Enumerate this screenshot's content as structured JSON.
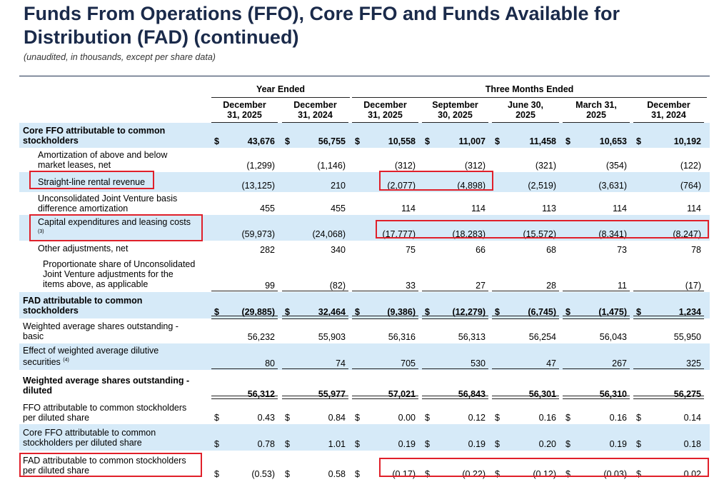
{
  "title": "Funds From Operations (FFO), Core FFO and Funds Available for Distribution (FAD) (continued)",
  "subtitle": "(unaudited, in thousands, except per share data)",
  "groups": {
    "year": "Year Ended",
    "quarter": "Three Months Ended"
  },
  "columns": [
    {
      "header": [
        "December",
        "31, 2025"
      ]
    },
    {
      "header": [
        "December",
        "31, 2024"
      ]
    },
    {
      "header": [
        "December",
        "31, 2025"
      ]
    },
    {
      "header": [
        "September",
        "30, 2025"
      ]
    },
    {
      "header": [
        "June 30,",
        "2025"
      ]
    },
    {
      "header": [
        "March 31,",
        "2025"
      ]
    },
    {
      "header": [
        "December",
        "31, 2024"
      ]
    }
  ],
  "rows": [
    {
      "label": [
        "Core FFO attributable to common",
        "stockholders"
      ],
      "values": [
        "43,676",
        "56,755",
        "10,558",
        "11,007",
        "11,458",
        "10,653",
        "10,192"
      ],
      "dollar": true
    },
    {
      "label": [
        "Amortization of above and below",
        "market leases, net"
      ],
      "values": [
        "(1,299)",
        "(1,146)",
        "(312)",
        "(312)",
        "(321)",
        "(354)",
        "(122)"
      ]
    },
    {
      "label": [
        "Straight-line rental revenue"
      ],
      "values": [
        "(13,125)",
        "210",
        "(2,077)",
        "(4,898)",
        "(2,519)",
        "(3,631)",
        "(764)"
      ]
    },
    {
      "label": [
        "Unconsolidated Joint Venture basis",
        "difference amortization"
      ],
      "values": [
        "455",
        "455",
        "114",
        "114",
        "113",
        "114",
        "114"
      ]
    },
    {
      "label": [
        "Capital expenditures and leasing costs",
        ""
      ],
      "footnote": "(3)",
      "values": [
        "(59,973)",
        "(24,068)",
        "(17,777)",
        "(18,283)",
        "(15,572)",
        "(8,341)",
        "(8,247)"
      ]
    },
    {
      "label": [
        "Other adjustments, net"
      ],
      "values": [
        "282",
        "340",
        "75",
        "66",
        "68",
        "73",
        "78"
      ]
    },
    {
      "label": [
        "Proportionate share of Unconsolidated",
        "Joint Venture adjustments for the",
        "items above, as applicable"
      ],
      "values": [
        "99",
        "(82)",
        "33",
        "27",
        "28",
        "11",
        "(17)"
      ]
    },
    {
      "label": [
        "FAD attributable to common",
        "stockholders"
      ],
      "values": [
        "(29,885)",
        "32,464",
        "(9,386)",
        "(12,279)",
        "(6,745)",
        "(1,475)",
        "1,234"
      ],
      "dollar": true
    },
    {
      "label": [
        "Weighted average shares outstanding -",
        "basic"
      ],
      "values": [
        "56,232",
        "55,903",
        "56,316",
        "56,313",
        "56,254",
        "56,043",
        "55,950"
      ]
    },
    {
      "label": [
        "Effect of weighted average dilutive",
        "securities"
      ],
      "footnote": "(4)",
      "values": [
        "80",
        "74",
        "705",
        "530",
        "47",
        "267",
        "325"
      ]
    },
    {
      "label": [
        "Weighted average shares outstanding -",
        "diluted"
      ],
      "values": [
        "56,312",
        "55,977",
        "57,021",
        "56,843",
        "56,301",
        "56,310",
        "56,275"
      ]
    },
    {
      "label": [
        "FFO attributable to common stockholders",
        "per diluted share"
      ],
      "values": [
        "0.43",
        "0.84",
        "0.00",
        "0.12",
        "0.16",
        "0.16",
        "0.14"
      ],
      "dollar": true
    },
    {
      "label": [
        "Core FFO attributable to common",
        "stockholders per diluted share"
      ],
      "values": [
        "0.78",
        "1.01",
        "0.19",
        "0.19",
        "0.20",
        "0.19",
        "0.18"
      ],
      "dollar": true
    },
    {
      "label": [
        "FAD attributable to common stockholders",
        "per diluted share"
      ],
      "values": [
        "(0.53)",
        "0.58",
        "(0.17)",
        "(0.22)",
        "(0.12)",
        "(0.03)",
        "0.02"
      ],
      "dollar": true
    }
  ],
  "dollar_sign": "$",
  "highlight_color": "#e0202a",
  "shade_color": "#d6eaf8"
}
